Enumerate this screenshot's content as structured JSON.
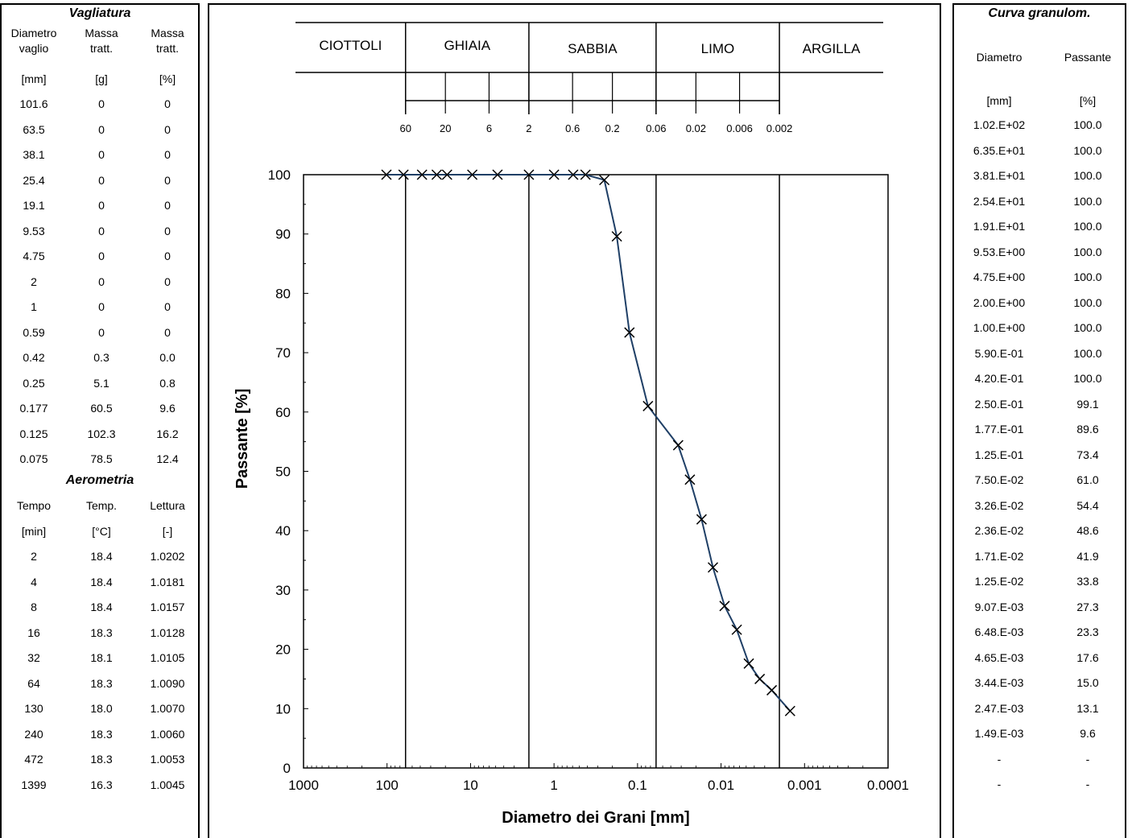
{
  "sieve": {
    "title": "Vagliatura",
    "headers": [
      [
        "Diametro",
        "vaglio"
      ],
      [
        "Massa",
        "tratt."
      ],
      [
        "Massa",
        "tratt."
      ]
    ],
    "units": [
      "[mm]",
      "[g]",
      "[%]"
    ],
    "rows": [
      [
        "101.6",
        "0",
        "0"
      ],
      [
        "63.5",
        "0",
        "0"
      ],
      [
        "38.1",
        "0",
        "0"
      ],
      [
        "25.4",
        "0",
        "0"
      ],
      [
        "19.1",
        "0",
        "0"
      ],
      [
        "9.53",
        "0",
        "0"
      ],
      [
        "4.75",
        "0",
        "0"
      ],
      [
        "2",
        "0",
        "0"
      ],
      [
        "1",
        "0",
        "0"
      ],
      [
        "0.59",
        "0",
        "0"
      ],
      [
        "0.42",
        "0.3",
        "0.0"
      ],
      [
        "0.25",
        "5.1",
        "0.8"
      ],
      [
        "0.177",
        "60.5",
        "9.6"
      ],
      [
        "0.125",
        "102.3",
        "16.2"
      ],
      [
        "0.075",
        "78.5",
        "12.4"
      ]
    ]
  },
  "aero": {
    "title": "Aerometria",
    "headers": [
      "Tempo",
      "Temp.",
      "Lettura"
    ],
    "units": [
      "[min]",
      "[°C]",
      "[-]"
    ],
    "rows": [
      [
        "2",
        "18.4",
        "1.0202"
      ],
      [
        "4",
        "18.4",
        "1.0181"
      ],
      [
        "8",
        "18.4",
        "1.0157"
      ],
      [
        "16",
        "18.3",
        "1.0128"
      ],
      [
        "32",
        "18.1",
        "1.0105"
      ],
      [
        "64",
        "18.3",
        "1.0090"
      ],
      [
        "130",
        "18.0",
        "1.0070"
      ],
      [
        "240",
        "18.3",
        "1.0060"
      ],
      [
        "472",
        "18.3",
        "1.0053"
      ],
      [
        "1399",
        "16.3",
        "1.0045"
      ]
    ]
  },
  "curve": {
    "title": "Curva granulom.",
    "headers": [
      "Diametro",
      "Passante"
    ],
    "units": [
      "[mm]",
      "[%]"
    ],
    "rows": [
      [
        "1.02.E+02",
        "100.0"
      ],
      [
        "6.35.E+01",
        "100.0"
      ],
      [
        "3.81.E+01",
        "100.0"
      ],
      [
        "2.54.E+01",
        "100.0"
      ],
      [
        "1.91.E+01",
        "100.0"
      ],
      [
        "9.53.E+00",
        "100.0"
      ],
      [
        "4.75.E+00",
        "100.0"
      ],
      [
        "2.00.E+00",
        "100.0"
      ],
      [
        "1.00.E+00",
        "100.0"
      ],
      [
        "5.90.E-01",
        "100.0"
      ],
      [
        "4.20.E-01",
        "100.0"
      ],
      [
        "2.50.E-01",
        "99.1"
      ],
      [
        "1.77.E-01",
        "89.6"
      ],
      [
        "1.25.E-01",
        "73.4"
      ],
      [
        "7.50.E-02",
        "61.0"
      ],
      [
        "3.26.E-02",
        "54.4"
      ],
      [
        "2.36.E-02",
        "48.6"
      ],
      [
        "1.71.E-02",
        "41.9"
      ],
      [
        "1.25.E-02",
        "33.8"
      ],
      [
        "9.07.E-03",
        "27.3"
      ],
      [
        "6.48.E-03",
        "23.3"
      ],
      [
        "4.65.E-03",
        "17.6"
      ],
      [
        "3.44.E-03",
        "15.0"
      ],
      [
        "2.47.E-03",
        "13.1"
      ],
      [
        "1.49.E-03",
        "9.6"
      ],
      [
        "-",
        "-"
      ],
      [
        "-",
        "-"
      ]
    ]
  },
  "classification": {
    "classes": [
      "CIOTTOLI",
      "GHIAIA",
      "SABBIA",
      "LIMO",
      "ARGILLA"
    ],
    "scale_labels": [
      "60",
      "20",
      "6",
      "2",
      "0.6",
      "0.2",
      "0.06",
      "0.02",
      "0.006",
      "0.002"
    ]
  },
  "chart_data": {
    "type": "scatter",
    "xlabel": "Diametro dei Grani [mm]",
    "ylabel": "Passante [%]",
    "x_scale": "log",
    "x_reversed": true,
    "xlim": [
      1000,
      0.0001
    ],
    "ylim": [
      0,
      100
    ],
    "x_tick_labels": [
      "1000",
      "100",
      "10",
      "1",
      "0.1",
      "0.01",
      "0.001",
      "0.0001"
    ],
    "y_tick_labels": [
      "0",
      "10",
      "20",
      "30",
      "40",
      "50",
      "60",
      "70",
      "80",
      "90",
      "100"
    ],
    "boundaries": [
      60,
      2,
      0.06,
      0.002
    ],
    "grid": false,
    "series": [
      {
        "color": "#1f3f66",
        "marker": "x",
        "x": [
          101.6,
          63.5,
          38.1,
          25.4,
          19.1,
          9.53,
          4.75,
          2.0,
          1.0,
          0.59,
          0.42,
          0.25,
          0.177,
          0.125,
          0.075,
          0.0326,
          0.0236,
          0.0171,
          0.0125,
          0.00907,
          0.00648,
          0.00465,
          0.00344,
          0.00247,
          0.00149
        ],
        "y": [
          100.0,
          100.0,
          100.0,
          100.0,
          100.0,
          100.0,
          100.0,
          100.0,
          100.0,
          100.0,
          100.0,
          99.1,
          89.6,
          73.4,
          61.0,
          54.4,
          48.6,
          41.9,
          33.8,
          27.3,
          23.3,
          17.6,
          15.0,
          13.1,
          9.6
        ]
      }
    ]
  }
}
